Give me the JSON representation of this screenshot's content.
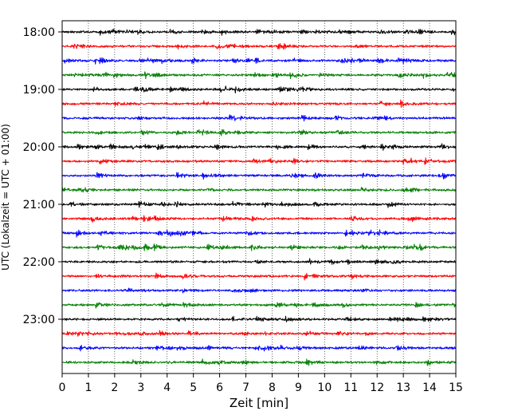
{
  "chart_data": {
    "type": "line",
    "title": "",
    "xlabel": "Zeit  [min]",
    "ylabel": "UTC (Lokalzeit = UTC + 01:00)",
    "xlim": [
      0,
      15
    ],
    "x_ticks": [
      "0",
      "1",
      "2",
      "3",
      "4",
      "5",
      "6",
      "7",
      "8",
      "9",
      "10",
      "11",
      "12",
      "13",
      "14",
      "15"
    ],
    "y_tick_labels": [
      "18:00",
      "19:00",
      "20:00",
      "21:00",
      "22:00",
      "23:00"
    ],
    "y_tick_rows": [
      0,
      4,
      8,
      12,
      16,
      20
    ],
    "grid": {
      "vertical": "dotted",
      "horizontal": false
    },
    "series_colors": [
      "#000000",
      "#ff0000",
      "#0000ff",
      "#007f00"
    ],
    "series": [
      {
        "start": "18:00",
        "color": "#000000"
      },
      {
        "start": "18:15",
        "color": "#ff0000"
      },
      {
        "start": "18:30",
        "color": "#0000ff"
      },
      {
        "start": "18:45",
        "color": "#007f00"
      },
      {
        "start": "19:00",
        "color": "#000000"
      },
      {
        "start": "19:15",
        "color": "#ff0000"
      },
      {
        "start": "19:30",
        "color": "#0000ff"
      },
      {
        "start": "19:45",
        "color": "#007f00"
      },
      {
        "start": "20:00",
        "color": "#000000"
      },
      {
        "start": "20:15",
        "color": "#ff0000"
      },
      {
        "start": "20:30",
        "color": "#0000ff"
      },
      {
        "start": "20:45",
        "color": "#007f00"
      },
      {
        "start": "21:00",
        "color": "#000000"
      },
      {
        "start": "21:15",
        "color": "#ff0000"
      },
      {
        "start": "21:30",
        "color": "#0000ff"
      },
      {
        "start": "21:45",
        "color": "#007f00"
      },
      {
        "start": "22:00",
        "color": "#000000"
      },
      {
        "start": "22:15",
        "color": "#ff0000"
      },
      {
        "start": "22:30",
        "color": "#0000ff"
      },
      {
        "start": "22:45",
        "color": "#007f00"
      },
      {
        "start": "23:00",
        "color": "#000000"
      },
      {
        "start": "23:15",
        "color": "#ff0000"
      },
      {
        "start": "23:30",
        "color": "#0000ff"
      },
      {
        "start": "23:45",
        "color": "#007f00"
      }
    ]
  }
}
